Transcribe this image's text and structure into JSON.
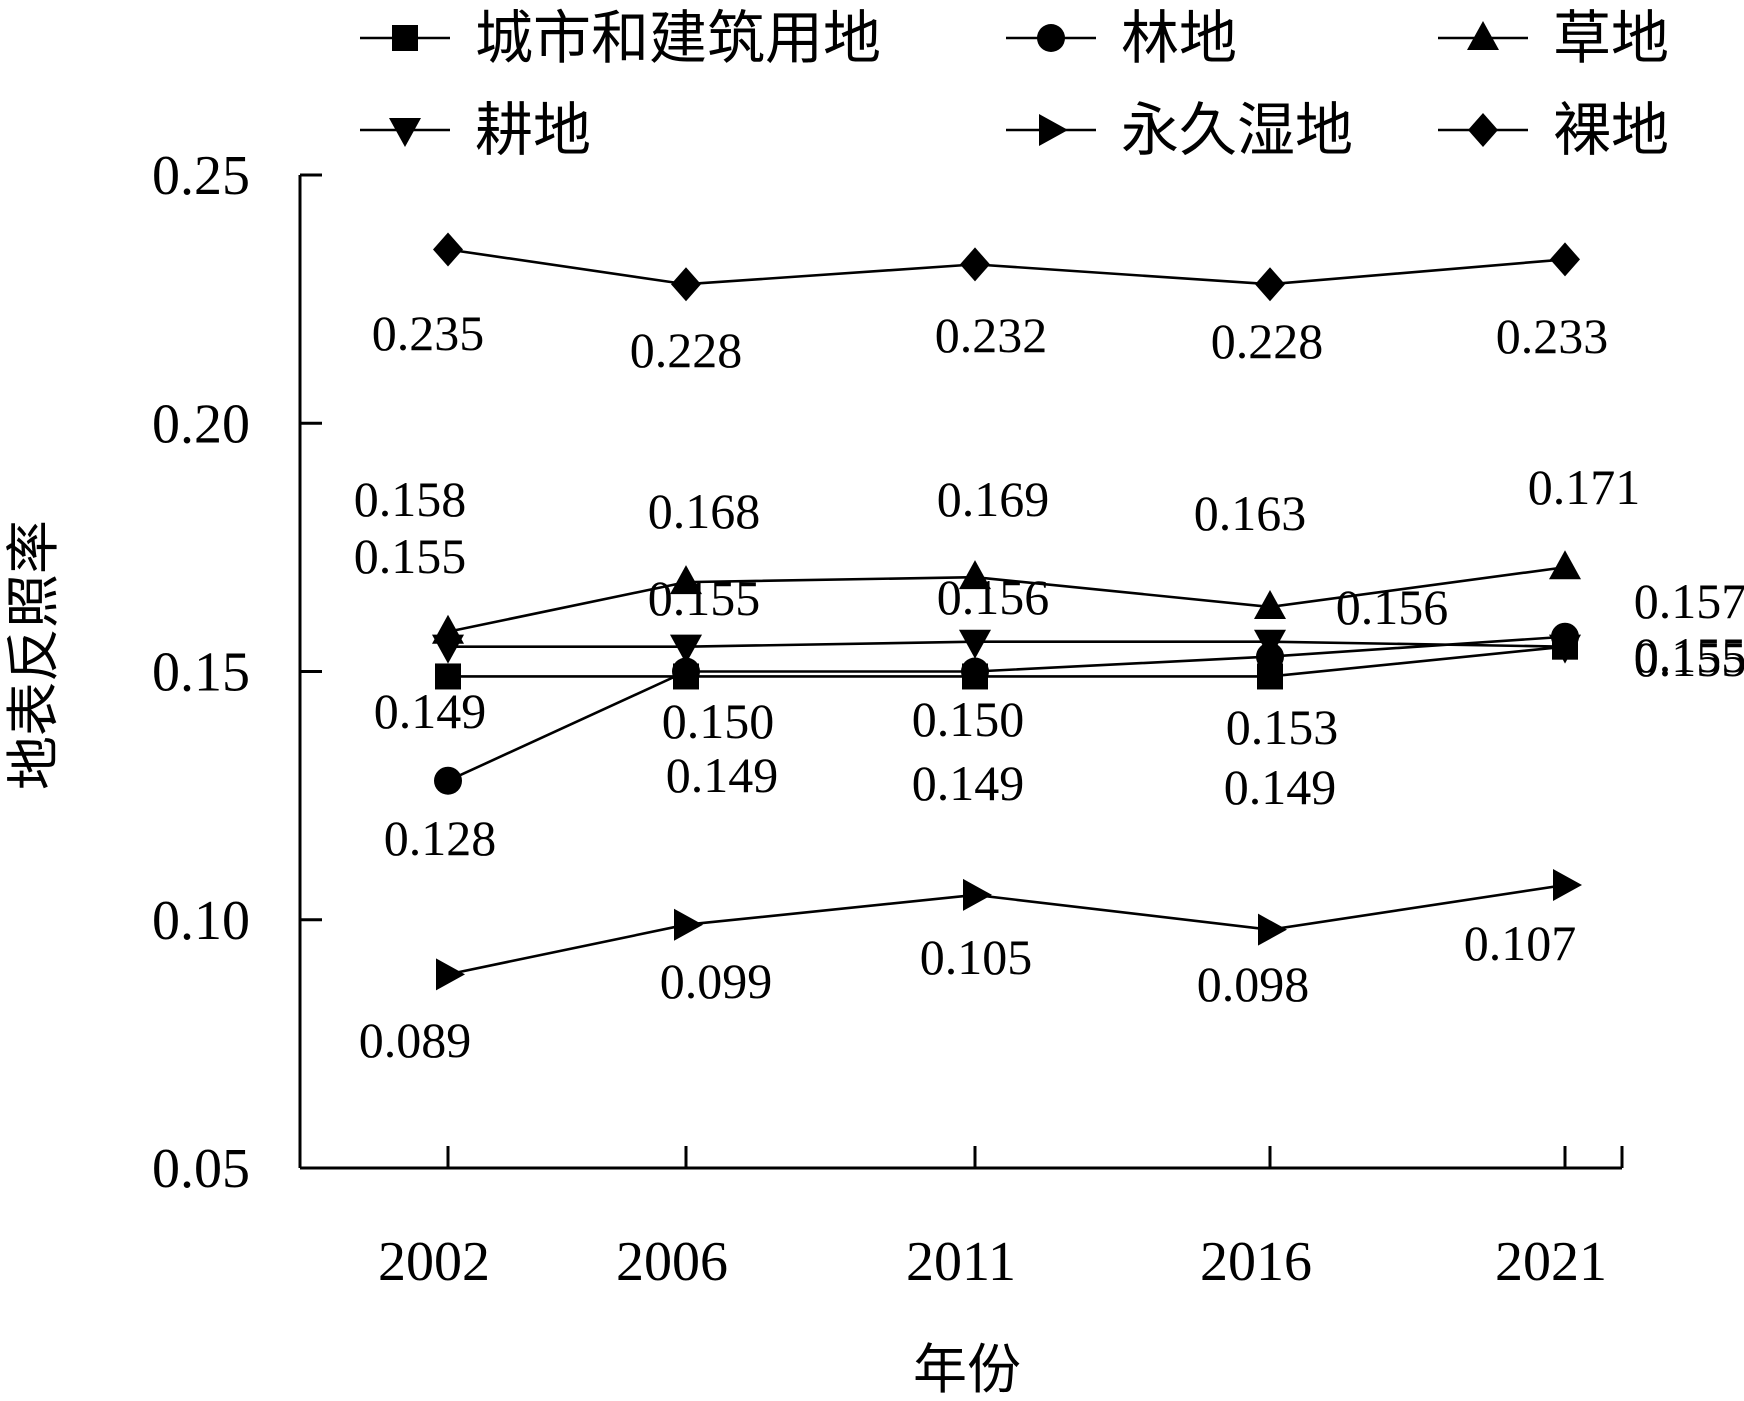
{
  "chart_data": {
    "type": "line",
    "title": "",
    "xlabel": "年份",
    "ylabel": "地表反照率",
    "x": [
      "2002",
      "2006",
      "2011",
      "2016",
      "2021"
    ],
    "ylim": [
      0.05,
      0.25
    ],
    "yticks": [
      "0.05",
      "0.10",
      "0.15",
      "0.20",
      "0.25"
    ],
    "grid": false,
    "legend_position": "top",
    "series": [
      {
        "name": "城市和建筑用地",
        "marker": "square",
        "values": [
          0.149,
          0.149,
          0.149,
          0.149,
          0.155
        ],
        "labels": [
          "0.149",
          "0.149",
          "0.149",
          "0.149",
          "0.155"
        ]
      },
      {
        "name": "林地",
        "marker": "circle",
        "values": [
          0.128,
          0.15,
          0.15,
          0.153,
          0.157
        ],
        "labels": [
          "0.128",
          "0.150",
          "0.150",
          "0.153",
          "0.157"
        ]
      },
      {
        "name": "草地",
        "marker": "triangle-up",
        "values": [
          0.158,
          0.168,
          0.169,
          0.163,
          0.171
        ],
        "labels": [
          "0.158",
          "0.168",
          "0.169",
          "0.163",
          "0.171"
        ]
      },
      {
        "name": "耕地",
        "marker": "triangle-down",
        "values": [
          0.155,
          0.155,
          0.156,
          0.156,
          0.155
        ],
        "labels": [
          "0.155",
          "0.155",
          "0.156",
          "0.156",
          "0.155"
        ]
      },
      {
        "name": "永久湿地",
        "marker": "triangle-right",
        "values": [
          0.089,
          0.099,
          0.105,
          0.098,
          0.107
        ],
        "labels": [
          "0.089",
          "0.099",
          "0.105",
          "0.098",
          "0.107"
        ]
      },
      {
        "name": "裸地",
        "marker": "diamond",
        "values": [
          0.235,
          0.228,
          0.232,
          0.228,
          0.233
        ],
        "labels": [
          "0.235",
          "0.228",
          "0.232",
          "0.228",
          "0.233"
        ]
      }
    ]
  }
}
